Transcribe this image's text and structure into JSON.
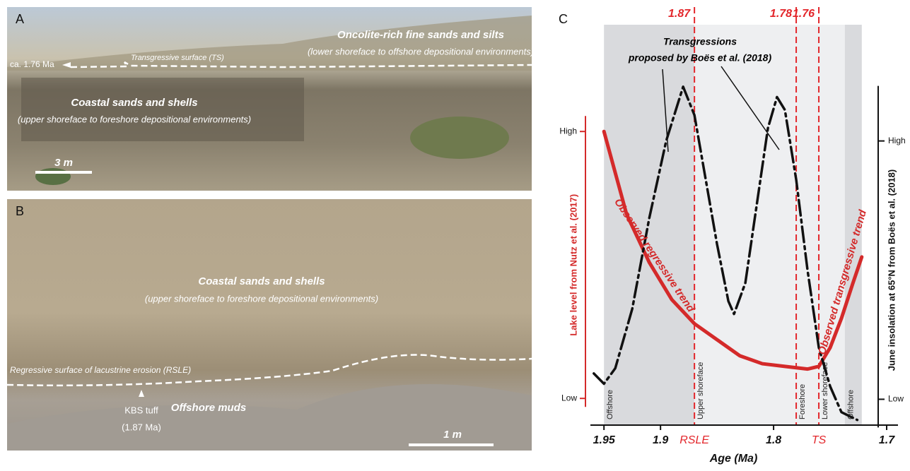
{
  "photo_a": {
    "letter": "A",
    "top_unit": "Oncolite-rich fine sands and silts",
    "top_unit_env": "(lower shoreface to offshore depositional environments)",
    "age": "ca. 1.76 Ma",
    "surface": "Transgressive surface (TS)",
    "unit": "Coastal sands and shells",
    "unit_env": "(upper shoreface to foreshore depositional environments)",
    "scale": "3 m"
  },
  "photo_b": {
    "letter": "B",
    "unit": "Coastal sands and shells",
    "unit_env": "(upper shoreface to foreshore depositional environments)",
    "surface": "Regressive surface of lacustrine erosion (RSLE)",
    "tuff": "KBS tuff",
    "tuff_age": "(1.87 Ma)",
    "lower_unit": "Offshore muds",
    "scale": "1 m"
  },
  "chart_data": {
    "type": "line",
    "panel_label": "C",
    "x_label": "Age (Ma)",
    "xlim": [
      1.962,
      1.69
    ],
    "xticks": [
      1.95,
      1.9,
      1.8,
      1.7
    ],
    "ylim": [
      -0.1,
      1.4
    ],
    "yticks": [
      {
        "value": 1,
        "label": "High"
      },
      {
        "value": 0,
        "label": "Low"
      }
    ],
    "y2lim": [
      -0.1,
      1.45
    ],
    "y2ticks": [
      {
        "value": 1,
        "label": "High"
      },
      {
        "value": 0,
        "label": "Low"
      }
    ],
    "zones": [
      {
        "label": "Offshore",
        "start": 1.95,
        "end": 1.87,
        "color": "#d9dadd"
      },
      {
        "label": "Upper shoreface",
        "start": 1.87,
        "end": 1.78,
        "color": "#eeeff1"
      },
      {
        "label": "Foreshore",
        "start": 1.78,
        "end": 1.76,
        "color": "#eeeff1"
      },
      {
        "label": "Lower shoreface",
        "start": 1.76,
        "end": 1.737,
        "color": "#eeeff1"
      },
      {
        "label": "Offshore",
        "start": 1.737,
        "end": 1.722,
        "color": "#d9dadd"
      }
    ],
    "vlines": [
      {
        "x": 1.87,
        "label": "RSLE"
      },
      {
        "x": 1.78
      },
      {
        "x": 1.76,
        "label": "TS"
      }
    ],
    "vline_color": "#e3262b",
    "series": [
      {
        "name": "Lake level from Nutz et al. (2017)",
        "color": "#d42a2a",
        "x": [
          1.95,
          1.93,
          1.91,
          1.89,
          1.87,
          1.85,
          1.83,
          1.81,
          1.79,
          1.77,
          1.76,
          1.75,
          1.74,
          1.73,
          1.722
        ],
        "values": [
          1.0,
          0.69,
          0.51,
          0.37,
          0.28,
          0.22,
          0.16,
          0.13,
          0.12,
          0.11,
          0.12,
          0.19,
          0.3,
          0.43,
          0.53
        ]
      },
      {
        "name": "June insolation at 65°N from Boës et al. (2018)",
        "color": "#111111",
        "axis": "y2",
        "x": [
          1.959,
          1.95,
          1.94,
          1.925,
          1.91,
          1.895,
          1.88,
          1.87,
          1.86,
          1.85,
          1.84,
          1.835,
          1.825,
          1.815,
          1.805,
          1.797,
          1.79,
          1.78,
          1.77,
          1.76,
          1.75,
          1.74,
          1.726
        ],
        "values": [
          0.1,
          0.06,
          0.12,
          0.35,
          0.7,
          1.0,
          1.21,
          1.1,
          0.85,
          0.6,
          0.38,
          0.33,
          0.45,
          0.75,
          1.05,
          1.17,
          1.12,
          0.85,
          0.5,
          0.2,
          0.05,
          -0.05,
          -0.08
        ]
      }
    ],
    "annotations": [
      "Transgressions",
      "proposed by Boës et al. (2018)",
      "Observed regressive trend",
      "Observed transgressive trend"
    ]
  }
}
